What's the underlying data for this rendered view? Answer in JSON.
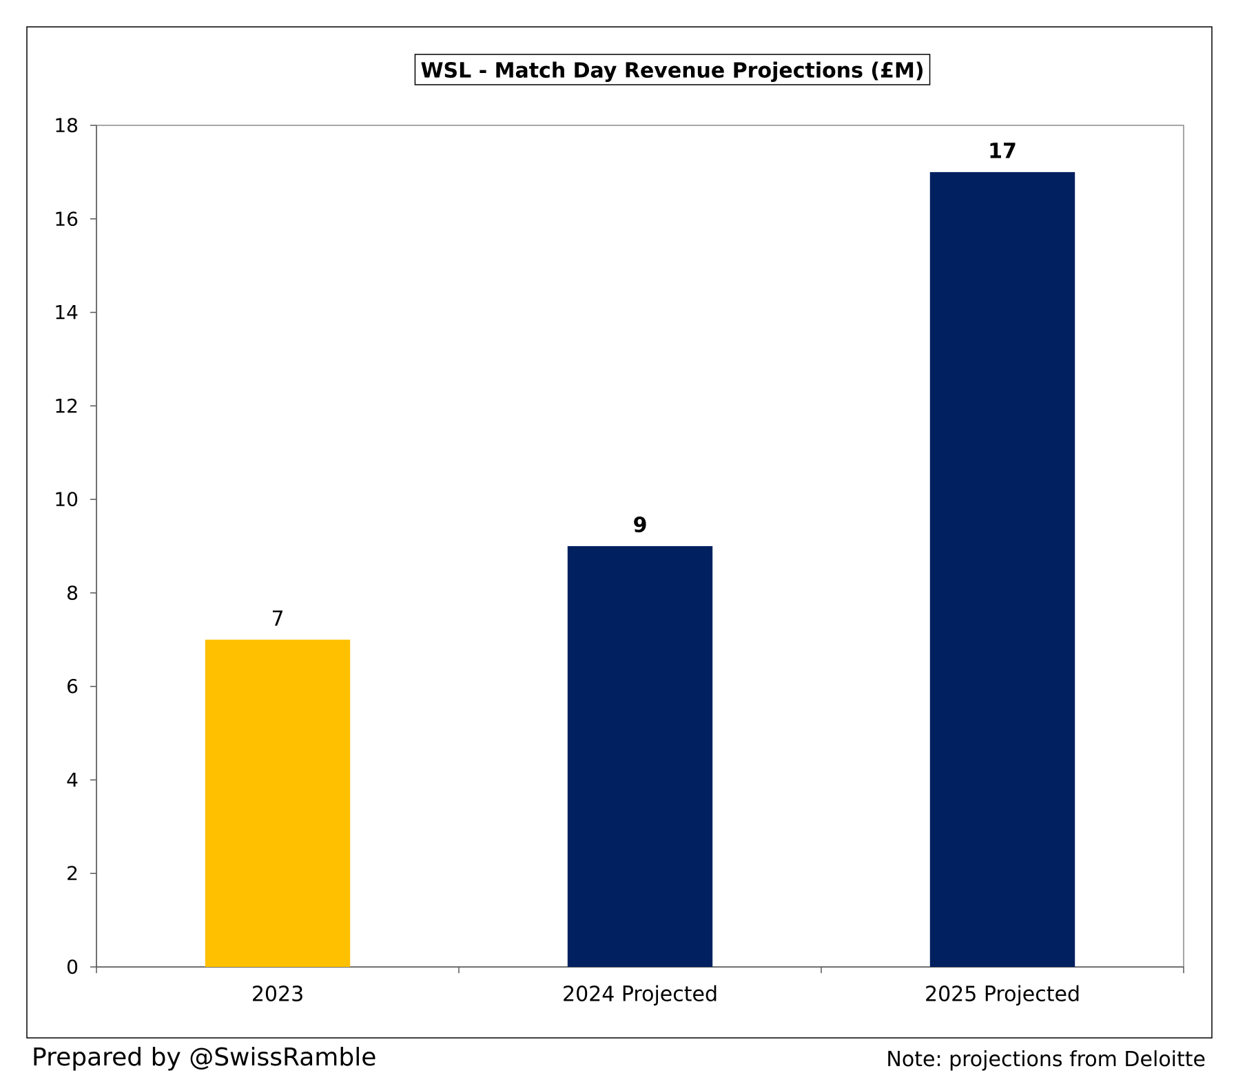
{
  "chart_data": {
    "type": "bar",
    "title": "WSL - Match Day Revenue Projections (£M)",
    "xlabel": "",
    "ylabel": "",
    "categories": [
      "2023",
      "2024 Projected",
      "2025 Projected"
    ],
    "values": [
      7,
      9,
      17
    ],
    "data_labels": [
      "7",
      "9",
      "17"
    ],
    "data_label_bold": [
      false,
      true,
      true
    ],
    "bar_colors": [
      "#FFC000",
      "#002060",
      "#002060"
    ],
    "ylim": [
      0,
      18
    ],
    "yticks": [
      0,
      2,
      4,
      6,
      8,
      10,
      12,
      14,
      16,
      18
    ],
    "ytick_labels": [
      "0",
      "2",
      "4",
      "6",
      "8",
      "10",
      "12",
      "14",
      "16",
      "18"
    ],
    "grid": false,
    "legend": "none"
  },
  "footer": {
    "left": "Prepared by @SwissRamble",
    "right": "Note: projections from Deloitte"
  }
}
